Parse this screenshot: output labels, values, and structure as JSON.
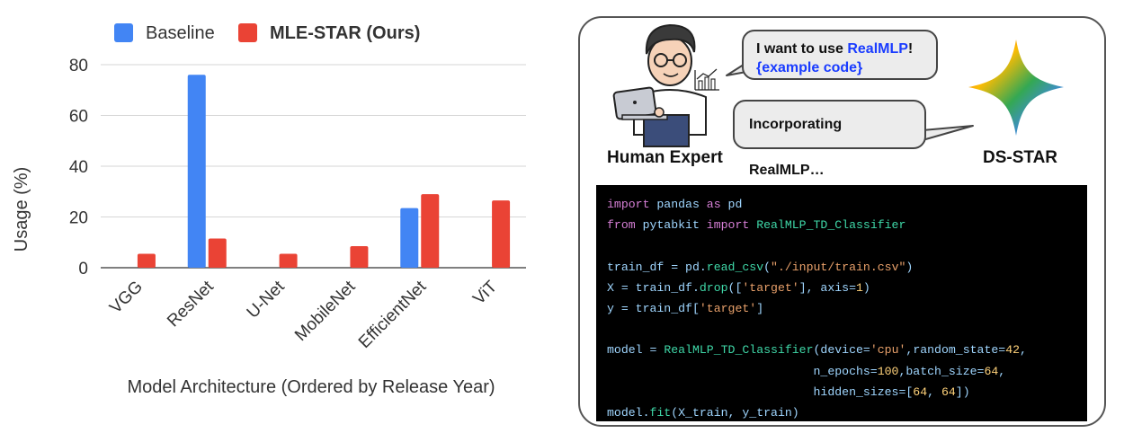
{
  "chart_data": {
    "type": "bar",
    "xlabel": "Model Architecture (Ordered by Release Year)",
    "ylabel": "Usage (%)",
    "ylim": [
      0,
      80
    ],
    "yticks": [
      0,
      20,
      40,
      60,
      80
    ],
    "categories": [
      "VGG",
      "ResNet",
      "U-Net",
      "MobileNet",
      "EfficientNet",
      "ViT"
    ],
    "series": [
      {
        "name": "Baseline",
        "color": "#4285f4",
        "values": [
          0,
          76,
          0,
          0,
          23.5,
          0
        ]
      },
      {
        "name": "MLE-STAR (Ours)",
        "color": "#ea4335",
        "values": [
          5.5,
          11.5,
          5.5,
          8.5,
          29,
          26.5
        ]
      }
    ],
    "legend_position": "top",
    "grid": true
  },
  "diagram": {
    "human_bubble": {
      "prefix": "I want to use ",
      "highlight": "RealMLP",
      "suffix": "!",
      "second_line": "{example code}"
    },
    "ds_bubble": "Incorporating RealMLP…",
    "human_caption": "Human Expert",
    "ds_caption": "DS-STAR",
    "code_lines": [
      [
        [
          "kw",
          "import"
        ],
        [
          "var",
          " pandas "
        ],
        [
          "kw",
          "as"
        ],
        [
          "var",
          " pd"
        ]
      ],
      [
        [
          "kw",
          "from"
        ],
        [
          "var",
          " pytabkit "
        ],
        [
          "kw",
          "import"
        ],
        [
          "fn",
          " RealMLP_TD_Classifier"
        ]
      ],
      [],
      [
        [
          "var",
          "train_df = pd."
        ],
        [
          "fn",
          "read_csv"
        ],
        [
          "var",
          "("
        ],
        [
          "str",
          "\"./input/train.csv\""
        ],
        [
          "var",
          ")"
        ]
      ],
      [
        [
          "var",
          "X = train_df."
        ],
        [
          "fn",
          "drop"
        ],
        [
          "var",
          "(["
        ],
        [
          "str",
          "'target'"
        ],
        [
          "var",
          "], axis="
        ],
        [
          "num",
          "1"
        ],
        [
          "var",
          ")"
        ]
      ],
      [
        [
          "var",
          "y = train_df["
        ],
        [
          "str",
          "'target'"
        ],
        [
          "var",
          "]"
        ]
      ],
      [],
      [
        [
          "var",
          "model = "
        ],
        [
          "fn",
          "RealMLP_TD_Classifier"
        ],
        [
          "var",
          "(device="
        ],
        [
          "str",
          "'cpu'"
        ],
        [
          "var",
          ",random_state="
        ],
        [
          "num",
          "42"
        ],
        [
          "var",
          ","
        ]
      ],
      [
        [
          "var",
          "                             n_epochs="
        ],
        [
          "num",
          "100"
        ],
        [
          "var",
          ",batch_size="
        ],
        [
          "num",
          "64"
        ],
        [
          "var",
          ","
        ]
      ],
      [
        [
          "var",
          "                             hidden_sizes=["
        ],
        [
          "num",
          "64"
        ],
        [
          "var",
          ", "
        ],
        [
          "num",
          "64"
        ],
        [
          "var",
          "])"
        ]
      ],
      [
        [
          "var",
          "model."
        ],
        [
          "fn",
          "fit"
        ],
        [
          "var",
          "(X_train, y_train)"
        ]
      ]
    ]
  }
}
